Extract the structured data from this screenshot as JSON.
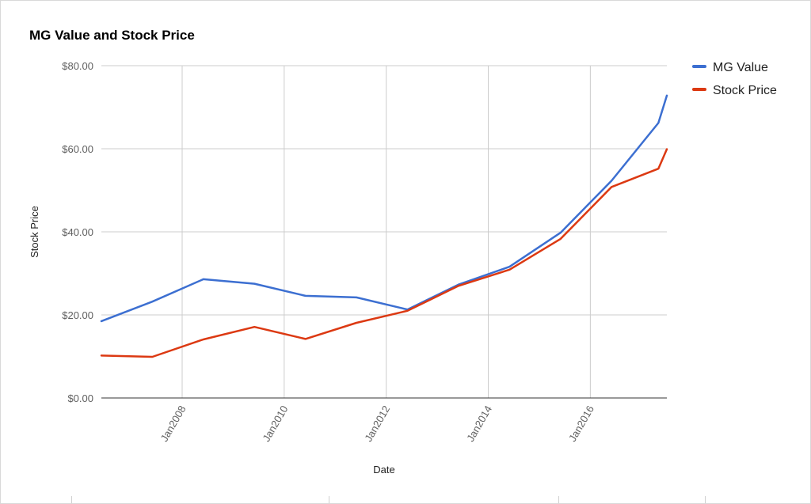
{
  "chart_data": {
    "type": "line",
    "title": "MG Value and Stock Price",
    "xlabel": "Date",
    "ylabel": "Stock Price",
    "ylim": [
      0,
      80
    ],
    "y_ticks": [
      "$0.00",
      "$20.00",
      "$40.00",
      "$60.00",
      "$80.00"
    ],
    "y_tick_values": [
      0,
      20,
      40,
      60,
      80
    ],
    "xlim": [
      "2006-06",
      "2017-07"
    ],
    "x_ticks": [
      "Jan2008",
      "Jan2010",
      "Jan2012",
      "Jan2014",
      "Jan2016"
    ],
    "x_tick_values": [
      "2008-01",
      "2010-01",
      "2012-01",
      "2014-01",
      "2016-01"
    ],
    "grid": true,
    "legend": "right",
    "series": [
      {
        "name": "MG Value",
        "color": "#3c6fd1",
        "points": [
          [
            "2006-06",
            18.5
          ],
          [
            "2007-06",
            23.2
          ],
          [
            "2008-06",
            28.6
          ],
          [
            "2009-06",
            27.5
          ],
          [
            "2010-06",
            24.6
          ],
          [
            "2011-06",
            24.2
          ],
          [
            "2012-06",
            21.3
          ],
          [
            "2013-06",
            27.3
          ],
          [
            "2014-06",
            31.6
          ],
          [
            "2015-06",
            39.8
          ],
          [
            "2016-06",
            52.3
          ],
          [
            "2017-05",
            66.2
          ],
          [
            "2017-07",
            72.8
          ]
        ]
      },
      {
        "name": "Stock Price",
        "color": "#dc3912",
        "points": [
          [
            "2006-06",
            10.2
          ],
          [
            "2007-06",
            9.9
          ],
          [
            "2008-06",
            14.1
          ],
          [
            "2009-06",
            17.1
          ],
          [
            "2010-06",
            14.2
          ],
          [
            "2011-06",
            18.1
          ],
          [
            "2012-06",
            21.0
          ],
          [
            "2013-06",
            27.0
          ],
          [
            "2014-06",
            30.9
          ],
          [
            "2015-06",
            38.3
          ],
          [
            "2016-06",
            50.8
          ],
          [
            "2017-05",
            55.2
          ],
          [
            "2017-07",
            59.9
          ]
        ]
      }
    ]
  }
}
